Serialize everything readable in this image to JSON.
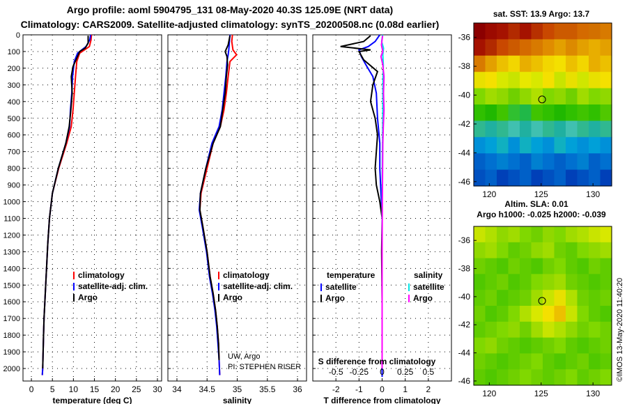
{
  "header": {
    "line1": "Argo profile: aoml 5904795_131 08-May-2020 40.3S 125.09E (NRT data)",
    "line2": "Climatology: CARS2009. Satellite-adjusted climatology: synTS_20200508.nc (0.08d earlier)"
  },
  "colors": {
    "climatology": "#ff0000",
    "satellite": "#0000ff",
    "argo": "#000000",
    "sal_satellite": "#00e5e5",
    "sal_argo": "#ff00ff"
  },
  "chart_data": [
    {
      "type": "line",
      "title": "",
      "xlabel": "temperature (deg C)",
      "xlim": [
        -2,
        31
      ],
      "xticks": [
        0,
        5,
        10,
        15,
        20,
        25,
        30
      ],
      "ylim": [
        0,
        2075
      ],
      "yticks": [
        0,
        100,
        200,
        300,
        400,
        500,
        600,
        700,
        800,
        900,
        1000,
        1100,
        1200,
        1300,
        1400,
        1500,
        1600,
        1700,
        1800,
        1900,
        2000
      ],
      "legend": [
        "climatology",
        "satellite-adj. clim.",
        "Argo"
      ],
      "series": [
        {
          "name": "climatology",
          "color": "#ff0000",
          "x": [
            14.3,
            14.2,
            13.8,
            11.5,
            10.8,
            10.5,
            10.2,
            9.9,
            9.5,
            8.4,
            6.5,
            5.0,
            4.3,
            3.9,
            3.6,
            3.4,
            3.2,
            3.0,
            2.9,
            2.8,
            2.7,
            2.6
          ],
          "y": [
            0,
            30,
            70,
            110,
            160,
            250,
            350,
            450,
            550,
            650,
            800,
            950,
            1100,
            1250,
            1400,
            1500,
            1600,
            1700,
            1800,
            1900,
            2000,
            2040
          ]
        },
        {
          "name": "satellite-adj. clim.",
          "color": "#0000ff",
          "x": [
            14.1,
            13.9,
            13.0,
            11.0,
            10.2,
            9.8,
            9.6,
            9.3,
            9.1,
            8.2,
            6.4,
            5.0,
            4.3,
            3.9,
            3.6,
            3.4,
            3.2,
            3.0,
            2.9,
            2.8,
            2.7,
            2.6
          ],
          "y": [
            0,
            30,
            70,
            110,
            160,
            250,
            350,
            450,
            550,
            650,
            800,
            950,
            1100,
            1250,
            1400,
            1500,
            1600,
            1700,
            1800,
            1900,
            2000,
            2040
          ]
        },
        {
          "name": "Argo",
          "color": "#000000",
          "x": [
            13.5,
            13.5,
            12.8,
            11.5,
            10.8,
            9.9,
            9.5,
            9.7,
            9.4,
            9.0,
            8.2,
            6.4,
            5.0,
            4.3,
            3.9,
            3.6,
            3.4,
            3.2,
            3.0,
            2.9,
            2.8,
            2.7
          ],
          "y": [
            5,
            50,
            80,
            100,
            140,
            190,
            250,
            350,
            450,
            550,
            650,
            800,
            950,
            1100,
            1250,
            1400,
            1500,
            1600,
            1700,
            1800,
            1900,
            2000
          ]
        }
      ]
    },
    {
      "type": "line",
      "title": "",
      "xlabel": "salinity",
      "xlim": [
        33.85,
        36.15
      ],
      "xticks": [
        34,
        34.5,
        35,
        35.5,
        36
      ],
      "ylim": [
        0,
        2075
      ],
      "legend": [
        "climatology",
        "satellite-adj. clim.",
        "Argo"
      ],
      "annotation": [
        "UW, Argo",
        "PI: STEPHEN RISER"
      ],
      "series": [
        {
          "name": "climatology",
          "color": "#ff0000",
          "x": [
            34.92,
            34.91,
            34.93,
            34.99,
            34.88,
            34.85,
            34.82,
            34.78,
            34.72,
            34.6,
            34.5,
            34.4,
            34.38,
            34.43,
            34.5,
            34.55,
            34.6,
            34.64,
            34.67,
            34.69,
            34.7,
            34.71
          ],
          "y": [
            0,
            40,
            90,
            120,
            160,
            250,
            350,
            450,
            550,
            650,
            800,
            950,
            1050,
            1150,
            1300,
            1450,
            1550,
            1650,
            1750,
            1850,
            1950,
            2040
          ]
        },
        {
          "name": "satellite-adj. clim.",
          "color": "#0000ff",
          "x": [
            34.88,
            34.87,
            34.86,
            34.85,
            34.83,
            34.81,
            34.78,
            34.75,
            34.7,
            34.58,
            34.48,
            34.39,
            34.37,
            34.42,
            34.49,
            34.54,
            34.59,
            34.63,
            34.66,
            34.68,
            34.7,
            34.71
          ],
          "y": [
            0,
            40,
            90,
            120,
            160,
            250,
            350,
            450,
            550,
            650,
            800,
            950,
            1050,
            1150,
            1300,
            1450,
            1550,
            1650,
            1750,
            1850,
            1950,
            2040
          ]
        },
        {
          "name": "Argo",
          "color": "#000000",
          "x": [
            34.88,
            34.85,
            34.8,
            34.83,
            34.84,
            34.82,
            34.8,
            34.76,
            34.72,
            34.6,
            34.48,
            34.39,
            34.38,
            34.43,
            34.5,
            34.55,
            34.6,
            34.64,
            34.67,
            34.69,
            34.7
          ],
          "y": [
            5,
            60,
            100,
            130,
            180,
            250,
            350,
            450,
            550,
            650,
            800,
            950,
            1050,
            1150,
            1300,
            1450,
            1550,
            1650,
            1750,
            1850,
            1950
          ]
        }
      ]
    },
    {
      "type": "line",
      "title": "S difference from climatology",
      "xlabel": "T difference from climatology",
      "xlim": [
        -3,
        3
      ],
      "xticks": [
        -2,
        -1,
        0,
        1,
        2
      ],
      "x2ticks": [
        -0.5,
        -0.25,
        0,
        0.25,
        0.5
      ],
      "x2labels": [
        "-0.5",
        "-0.25",
        "0",
        "0.25",
        "0.5"
      ],
      "ylim": [
        0,
        2075
      ],
      "legend_left_title": "temperature",
      "legend_right_title": "salinity",
      "legend_left": [
        "satellite",
        "Argo"
      ],
      "legend_right": [
        "satellite",
        "Argo"
      ],
      "series": [
        {
          "name": "T satellite",
          "color": "#0000ff",
          "x": [
            -0.1,
            -0.3,
            -0.6,
            -1.0,
            -0.9,
            -0.7,
            -0.4,
            -0.25,
            -0.2,
            -0.1,
            -0.1,
            -0.05,
            0.0,
            0.0,
            0.0,
            0.0,
            0.0,
            0.0,
            0.0,
            0.0
          ],
          "y": [
            0,
            40,
            70,
            90,
            130,
            180,
            250,
            350,
            500,
            650,
            800,
            950,
            1100,
            1300,
            1500,
            1650,
            1800,
            1900,
            2000,
            2050
          ]
        },
        {
          "name": "T Argo",
          "color": "#000000",
          "x": [
            -0.5,
            -0.8,
            -1.8,
            -0.5,
            -1.0,
            -0.8,
            -0.2,
            -0.4,
            -0.5,
            -0.3,
            -0.2,
            -0.3,
            -0.25,
            -0.1,
            0.0,
            -0.02,
            0.0,
            0.0
          ],
          "y": [
            5,
            40,
            70,
            90,
            100,
            150,
            220,
            300,
            400,
            500,
            600,
            800,
            900,
            1000,
            1100,
            1300,
            1600,
            2000
          ]
        },
        {
          "name": "S satellite",
          "color": "#00e5e5",
          "x": [
            0.02,
            -0.02,
            0.06,
            0.03,
            0.05,
            0.04,
            0.03,
            0.03,
            0.02,
            0.01,
            0.0,
            0.0,
            0.0,
            0.0,
            0.0
          ],
          "y": [
            0,
            40,
            80,
            120,
            180,
            250,
            350,
            450,
            600,
            750,
            900,
            1100,
            1300,
            1600,
            2000
          ]
        },
        {
          "name": "S Argo",
          "color": "#ff00ff",
          "x": [
            0.02,
            -0.03,
            0.03,
            -0.05,
            0.03,
            0.08,
            0.06,
            0.08,
            0.05,
            0.03,
            0.02,
            0.01,
            0.0,
            0.0,
            0.0
          ],
          "y": [
            5,
            60,
            100,
            130,
            180,
            250,
            350,
            450,
            550,
            650,
            800,
            1000,
            1300,
            1600,
            2000
          ]
        }
      ]
    },
    {
      "type": "heatmap",
      "title": "sat. SST: 13.9 Argo: 13.7",
      "subtitle": "Altim. SLA: 0.01",
      "xticks": [
        120,
        125,
        130
      ],
      "yticks": [
        -36,
        -38,
        -40,
        -42,
        -44,
        -46
      ],
      "xlim": [
        118.5,
        131.8
      ],
      "ylim": [
        -46.3,
        -35.0
      ],
      "marker": {
        "lon": 125.09,
        "lat": -40.3
      },
      "rows": [
        [
          "#8b0000",
          "#9c0a00",
          "#a51200",
          "#b22a00",
          "#a51200",
          "#b73000",
          "#c94800",
          "#cc5a00",
          "#cc5a00",
          "#d46a00",
          "#d27000",
          "#d87a00"
        ],
        [
          "#a51200",
          "#b22a00",
          "#c94800",
          "#cc5a00",
          "#d46a00",
          "#d87a00",
          "#e08c00",
          "#e3a000",
          "#dc8a00",
          "#e3a000",
          "#e8ae00",
          "#e3a000"
        ],
        [
          "#d87a00",
          "#e3a000",
          "#ecc000",
          "#f2d600",
          "#e8ae00",
          "#ecc000",
          "#f2d600",
          "#f4e000",
          "#ecc000",
          "#f2d600",
          "#e8ae00",
          "#ecc000"
        ],
        [
          "#e8e000",
          "#f4e000",
          "#d8e800",
          "#c8e400",
          "#e8e800",
          "#d8e800",
          "#f4e000",
          "#c8e400",
          "#e8e000",
          "#d0e600",
          "#e8e000",
          "#f4e000"
        ],
        [
          "#80d800",
          "#a0dc00",
          "#90d800",
          "#70d000",
          "#90d800",
          "#b0e000",
          "#80d800",
          "#90d800",
          "#70d000",
          "#a0dc00",
          "#80d800",
          "#90d800"
        ],
        [
          "#30c000",
          "#20b800",
          "#40c400",
          "#30c030",
          "#20b848",
          "#40c400",
          "#30c000",
          "#20b800",
          "#30c000",
          "#40c400",
          "#30c000",
          "#50c800"
        ],
        [
          "#30b890",
          "#20b0a0",
          "#30b890",
          "#40c0b0",
          "#20b0a0",
          "#40c0b0",
          "#30b890",
          "#20b0a0",
          "#40c0b0",
          "#30b890",
          "#20b0a0",
          "#30b890"
        ],
        [
          "#0090d8",
          "#00a0d8",
          "#10b0c0",
          "#0090d8",
          "#10b0c0",
          "#00a0d8",
          "#0090d8",
          "#10b0c0",
          "#00a0d8",
          "#0090d8",
          "#00a0d8",
          "#0090d8"
        ],
        [
          "#0060c8",
          "#0070d0",
          "#0080d0",
          "#0070d0",
          "#0060c8",
          "#0080d0",
          "#0070d0",
          "#0060c8",
          "#0070d0",
          "#0080d0",
          "#0060c8",
          "#0070d0"
        ],
        [
          "#0050c0",
          "#0060c8",
          "#0040b8",
          "#0050c0",
          "#0060c8",
          "#0040b8",
          "#0050c0",
          "#0060c8",
          "#0040b8",
          "#0050c0",
          "#0060c8",
          "#0040b8"
        ]
      ]
    },
    {
      "type": "heatmap",
      "title": "Argo h1000: -0.025 h2000: -0.039",
      "xticks": [
        120,
        125,
        130
      ],
      "yticks": [
        -36,
        -38,
        -40,
        -42,
        -44,
        -46
      ],
      "xlim": [
        118.5,
        131.8
      ],
      "ylim": [
        -46.3,
        -35.0
      ],
      "marker": {
        "lon": 125.09,
        "lat": -40.3
      },
      "rows": [
        [
          "#c8e400",
          "#b0e000",
          "#90d800",
          "#a0dc00",
          "#80d800",
          "#70d000",
          "#90d800",
          "#80d800",
          "#a0dc00",
          "#b0e000",
          "#c8e400",
          "#d8e800"
        ],
        [
          "#90d800",
          "#a0dc00",
          "#80d800",
          "#60cc00",
          "#70d000",
          "#90d800",
          "#a0dc00",
          "#70d000",
          "#60cc00",
          "#80d800",
          "#90d800",
          "#a0dc00"
        ],
        [
          "#70d000",
          "#60cc00",
          "#50c800",
          "#70d000",
          "#60cc00",
          "#50c800",
          "#70d000",
          "#80d800",
          "#60cc00",
          "#50c800",
          "#70d000",
          "#60cc00"
        ],
        [
          "#50c800",
          "#60cc00",
          "#70d000",
          "#50c800",
          "#60cc00",
          "#80d800",
          "#90d800",
          "#a0dc00",
          "#70d000",
          "#60cc00",
          "#50c800",
          "#60cc00"
        ],
        [
          "#60cc00",
          "#70d000",
          "#50c800",
          "#60cc00",
          "#70d000",
          "#a0dc00",
          "#c8e400",
          "#e8e000",
          "#b0e000",
          "#70d000",
          "#60cc00",
          "#70d000"
        ],
        [
          "#70d000",
          "#50c800",
          "#60cc00",
          "#80d800",
          "#b0e000",
          "#d8e800",
          "#f4e000",
          "#ecc000",
          "#c8e400",
          "#80d800",
          "#60cc00",
          "#50c800"
        ],
        [
          "#60cc00",
          "#70d000",
          "#80d800",
          "#90d800",
          "#70d000",
          "#a0dc00",
          "#c8e400",
          "#b0e000",
          "#90d800",
          "#70d000",
          "#80d800",
          "#70d000"
        ],
        [
          "#80d800",
          "#90d800",
          "#70d000",
          "#60cc00",
          "#50c800",
          "#60cc00",
          "#70d000",
          "#80d800",
          "#60cc00",
          "#50c800",
          "#60cc00",
          "#70d000"
        ],
        [
          "#70d000",
          "#60cc00",
          "#50c800",
          "#60cc00",
          "#70d000",
          "#80d800",
          "#60cc00",
          "#50c800",
          "#60cc00",
          "#70d000",
          "#50c800",
          "#60cc00"
        ],
        [
          "#60cc00",
          "#50c800",
          "#60cc00",
          "#70d000",
          "#80d800",
          "#70d000",
          "#60cc00",
          "#70d000",
          "#80d800",
          "#60cc00",
          "#70d000",
          "#80d800"
        ]
      ]
    }
  ],
  "credit": "©IMOS 13-May-2020 11:40:20"
}
